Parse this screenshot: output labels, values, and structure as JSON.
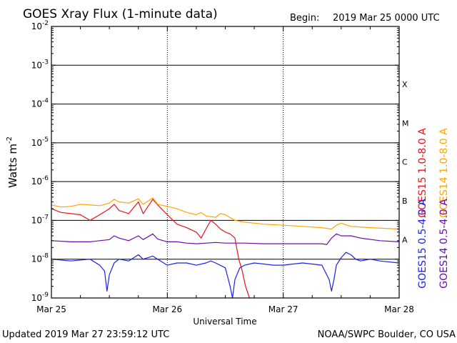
{
  "header": {
    "title": "GOES Xray Flux (1-minute data)",
    "begin_label": "Begin:",
    "begin_value": "2019 Mar 25 0000 UTC"
  },
  "footer": {
    "updated": "Updated 2019 Mar 27 23:59:12 UTC",
    "credit": "NOAA/SWPC Boulder, CO USA"
  },
  "chart_data": {
    "type": "line",
    "title": "GOES Xray Flux (1-minute data)",
    "xlabel": "Universal Time",
    "ylabel": "Watts m",
    "ylabel_superscript": "-2",
    "y_scale": "log",
    "ylim": [
      1e-09,
      0.01
    ],
    "y_ticks": [
      {
        "value": 1e-09,
        "base": "10",
        "exp": "-9"
      },
      {
        "value": 1e-08,
        "base": "10",
        "exp": "-8"
      },
      {
        "value": 1e-07,
        "base": "10",
        "exp": "-7"
      },
      {
        "value": 1e-06,
        "base": "10",
        "exp": "-6"
      },
      {
        "value": 1e-05,
        "base": "10",
        "exp": "-5"
      },
      {
        "value": 0.0001,
        "base": "10",
        "exp": "-4"
      },
      {
        "value": 0.001,
        "base": "10",
        "exp": "-3"
      },
      {
        "value": 0.01,
        "base": "10",
        "exp": "-2"
      }
    ],
    "x_ticks": [
      {
        "hour": 0,
        "label": "Mar 25"
      },
      {
        "hour": 24,
        "label": "Mar 26"
      },
      {
        "hour": 48,
        "label": "Mar 27"
      },
      {
        "hour": 72,
        "label": "Mar 28"
      }
    ],
    "xlim_hours": [
      0,
      72
    ],
    "grid": true,
    "flare_classes": [
      {
        "label": "A",
        "value": 1e-08
      },
      {
        "label": "B",
        "value": 1e-07
      },
      {
        "label": "C",
        "value": 1e-06
      },
      {
        "label": "M",
        "value": 1e-05
      },
      {
        "label": "X",
        "value": 0.0001
      }
    ],
    "series": [
      {
        "name": "GOES15 1.0-8.0 A",
        "color": "#e8121a",
        "points": [
          [
            0,
            2e-07
          ],
          [
            2,
            1.6e-07
          ],
          [
            4,
            1.5e-07
          ],
          [
            6,
            1.4e-07
          ],
          [
            8,
            1e-07
          ],
          [
            10,
            1.4e-07
          ],
          [
            12,
            2e-07
          ],
          [
            13,
            2.6e-07
          ],
          [
            14,
            1.8e-07
          ],
          [
            16,
            1.5e-07
          ],
          [
            18,
            3e-07
          ],
          [
            19,
            1.5e-07
          ],
          [
            21,
            3.5e-07
          ],
          [
            22,
            2.5e-07
          ],
          [
            24,
            1.4e-07
          ],
          [
            26,
            8e-08
          ],
          [
            28,
            6.5e-08
          ],
          [
            30,
            5e-08
          ],
          [
            31,
            3.5e-08
          ],
          [
            32,
            6e-08
          ],
          [
            33,
            1e-07
          ],
          [
            34,
            8e-08
          ],
          [
            35,
            6e-08
          ],
          [
            36,
            5e-08
          ],
          [
            37,
            4.5e-08
          ],
          [
            38,
            3.5e-08
          ],
          [
            38.8,
            1e-08
          ],
          [
            39.5,
            5e-09
          ],
          [
            40.2,
            2e-09
          ],
          [
            41,
            1e-09
          ]
        ]
      },
      {
        "name": "GOES14 1.0-8.0 A",
        "color": "#ffa500",
        "points": [
          [
            0,
            2.5e-07
          ],
          [
            2,
            2.2e-07
          ],
          [
            4,
            2.3e-07
          ],
          [
            6,
            2.6e-07
          ],
          [
            8,
            2.5e-07
          ],
          [
            10,
            2.4e-07
          ],
          [
            12,
            2.8e-07
          ],
          [
            13,
            3.5e-07
          ],
          [
            14,
            3e-07
          ],
          [
            16,
            2.8e-07
          ],
          [
            18,
            3.6e-07
          ],
          [
            19,
            2.6e-07
          ],
          [
            21,
            3.8e-07
          ],
          [
            22,
            2.6e-07
          ],
          [
            24,
            2.3e-07
          ],
          [
            26,
            2e-07
          ],
          [
            28,
            1.6e-07
          ],
          [
            30,
            1.4e-07
          ],
          [
            31,
            1.6e-07
          ],
          [
            32,
            1.3e-07
          ],
          [
            34,
            1.2e-07
          ],
          [
            35,
            1.5e-07
          ],
          [
            36,
            1.4e-07
          ],
          [
            38,
            1e-07
          ],
          [
            40,
            9e-08
          ],
          [
            44,
            8e-08
          ],
          [
            48,
            7.5e-08
          ],
          [
            52,
            7e-08
          ],
          [
            56,
            6.5e-08
          ],
          [
            58,
            6e-08
          ],
          [
            59,
            7.5e-08
          ],
          [
            60,
            8.5e-08
          ],
          [
            62,
            7e-08
          ],
          [
            66,
            6.5e-08
          ],
          [
            72,
            6e-08
          ]
        ]
      },
      {
        "name": "GOES15 0.5-4.0 A",
        "color": "#1a22e6",
        "points": [
          [
            0,
            1e-08
          ],
          [
            4,
            9e-09
          ],
          [
            8,
            1e-08
          ],
          [
            10,
            7e-09
          ],
          [
            11,
            5e-09
          ],
          [
            11.5,
            1.5e-09
          ],
          [
            12,
            4e-09
          ],
          [
            13,
            8e-09
          ],
          [
            14,
            1e-08
          ],
          [
            16,
            9e-09
          ],
          [
            18,
            1.3e-08
          ],
          [
            19,
            1e-08
          ],
          [
            21,
            1.2e-08
          ],
          [
            22,
            1e-08
          ],
          [
            24,
            7e-09
          ],
          [
            26,
            8e-09
          ],
          [
            28,
            8e-09
          ],
          [
            30,
            7e-09
          ],
          [
            32,
            8e-09
          ],
          [
            33,
            9e-09
          ],
          [
            34,
            8e-09
          ],
          [
            36,
            6e-09
          ],
          [
            37,
            2e-09
          ],
          [
            37.5,
            1e-09
          ],
          [
            38,
            3e-09
          ],
          [
            39,
            6e-09
          ],
          [
            40,
            7e-09
          ],
          [
            42,
            8e-09
          ],
          [
            44,
            7.5e-09
          ],
          [
            46,
            7e-09
          ],
          [
            48,
            7e-09
          ],
          [
            50,
            7.5e-09
          ],
          [
            52,
            8e-09
          ],
          [
            54,
            7.5e-09
          ],
          [
            56,
            7e-09
          ],
          [
            57.5,
            3e-09
          ],
          [
            58,
            1.5e-09
          ],
          [
            58.5,
            3e-09
          ],
          [
            59,
            7e-09
          ],
          [
            60,
            1.1e-08
          ],
          [
            61,
            1.5e-08
          ],
          [
            62,
            1.3e-08
          ],
          [
            63,
            1e-08
          ],
          [
            64,
            9e-09
          ],
          [
            66,
            1e-08
          ],
          [
            68,
            9e-09
          ],
          [
            72,
            8e-09
          ]
        ]
      },
      {
        "name": "GOES14 0.5-4.0 A",
        "color": "#6a0dad",
        "points": [
          [
            0,
            3e-08
          ],
          [
            4,
            2.8e-08
          ],
          [
            8,
            2.8e-08
          ],
          [
            10,
            3e-08
          ],
          [
            12,
            3.2e-08
          ],
          [
            13,
            4e-08
          ],
          [
            14,
            3.5e-08
          ],
          [
            16,
            3e-08
          ],
          [
            18,
            4e-08
          ],
          [
            19,
            3.2e-08
          ],
          [
            21,
            4.5e-08
          ],
          [
            22,
            3.3e-08
          ],
          [
            24,
            2.8e-08
          ],
          [
            26,
            2.8e-08
          ],
          [
            28,
            2.6e-08
          ],
          [
            30,
            2.5e-08
          ],
          [
            32,
            2.6e-08
          ],
          [
            34,
            2.7e-08
          ],
          [
            36,
            2.6e-08
          ],
          [
            38,
            2.6e-08
          ],
          [
            40,
            2.6e-08
          ],
          [
            44,
            2.5e-08
          ],
          [
            48,
            2.5e-08
          ],
          [
            52,
            2.5e-08
          ],
          [
            56,
            2.5e-08
          ],
          [
            57,
            2.4e-08
          ],
          [
            58,
            3.5e-08
          ],
          [
            59,
            4.5e-08
          ],
          [
            60,
            4e-08
          ],
          [
            62,
            4e-08
          ],
          [
            64,
            3.5e-08
          ],
          [
            68,
            3e-08
          ],
          [
            72,
            2.8e-08
          ]
        ]
      }
    ]
  }
}
